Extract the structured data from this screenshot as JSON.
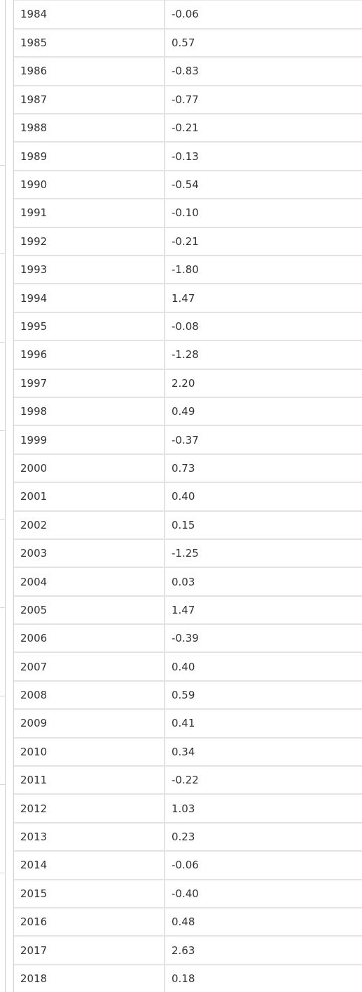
{
  "table": {
    "rows": [
      {
        "year": "1984",
        "value": "-0.06"
      },
      {
        "year": "1985",
        "value": "0.57"
      },
      {
        "year": "1986",
        "value": "-0.83"
      },
      {
        "year": "1987",
        "value": "-0.77"
      },
      {
        "year": "1988",
        "value": "-0.21"
      },
      {
        "year": "1989",
        "value": "-0.13"
      },
      {
        "year": "1990",
        "value": "-0.54"
      },
      {
        "year": "1991",
        "value": "-0.10"
      },
      {
        "year": "1992",
        "value": "-0.21"
      },
      {
        "year": "1993",
        "value": "-1.80"
      },
      {
        "year": "1994",
        "value": "1.47"
      },
      {
        "year": "1995",
        "value": "-0.08"
      },
      {
        "year": "1996",
        "value": "-1.28"
      },
      {
        "year": "1997",
        "value": "2.20"
      },
      {
        "year": "1998",
        "value": "0.49"
      },
      {
        "year": "1999",
        "value": "-0.37"
      },
      {
        "year": "2000",
        "value": "0.73"
      },
      {
        "year": "2001",
        "value": "0.40"
      },
      {
        "year": "2002",
        "value": "0.15"
      },
      {
        "year": "2003",
        "value": "-1.25"
      },
      {
        "year": "2004",
        "value": "0.03"
      },
      {
        "year": "2005",
        "value": "1.47"
      },
      {
        "year": "2006",
        "value": "-0.39"
      },
      {
        "year": "2007",
        "value": "0.40"
      },
      {
        "year": "2008",
        "value": "0.59"
      },
      {
        "year": "2009",
        "value": "0.41"
      },
      {
        "year": "2010",
        "value": "0.34"
      },
      {
        "year": "2011",
        "value": "-0.22"
      },
      {
        "year": "2012",
        "value": "1.03"
      },
      {
        "year": "2013",
        "value": "0.23"
      },
      {
        "year": "2014",
        "value": "-0.06"
      },
      {
        "year": "2015",
        "value": "-0.40"
      },
      {
        "year": "2016",
        "value": "0.48"
      },
      {
        "year": "2017",
        "value": "2.63"
      },
      {
        "year": "2018",
        "value": "0.18"
      }
    ]
  }
}
